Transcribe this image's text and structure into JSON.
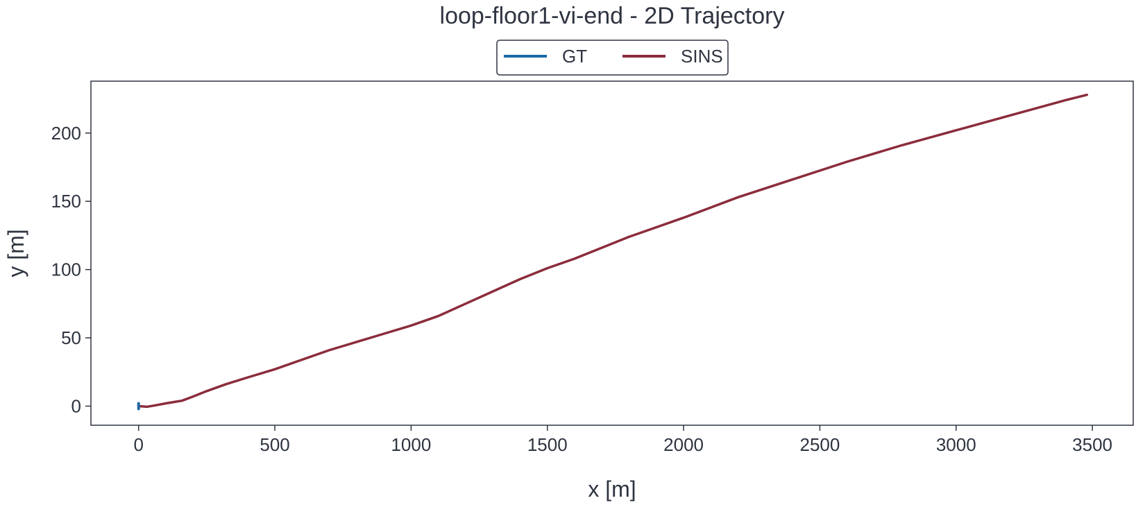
{
  "chart_data": {
    "type": "line",
    "title": "loop-floor1-vi-end - 2D Trajectory",
    "xlabel": "x [m]",
    "ylabel": "y [m]",
    "xlim": [
      -175,
      3650
    ],
    "ylim": [
      -14,
      238
    ],
    "xticks": [
      0,
      500,
      1000,
      1500,
      2000,
      2500,
      3000,
      3500
    ],
    "yticks": [
      0,
      50,
      100,
      150,
      200
    ],
    "grid": false,
    "legend": {
      "placement": "top-center",
      "columns": 2
    },
    "series": [
      {
        "name": "GT",
        "color": "#1a6aa6",
        "x": [
          0,
          0,
          0,
          0,
          0
        ],
        "y": [
          -2,
          -1,
          0,
          1,
          2
        ]
      },
      {
        "name": "SINS",
        "color": "#8b2c3c",
        "x": [
          0,
          30,
          60,
          100,
          160,
          200,
          250,
          320,
          400,
          500,
          600,
          700,
          800,
          900,
          1000,
          1100,
          1200,
          1300,
          1400,
          1500,
          1600,
          1700,
          1800,
          1900,
          2000,
          2200,
          2400,
          2600,
          2800,
          3000,
          3200,
          3400,
          3480
        ],
        "y": [
          0,
          -0.5,
          0.5,
          2,
          4,
          7,
          11,
          16,
          21,
          27,
          34,
          41,
          47,
          53,
          59,
          66,
          75,
          84,
          93,
          101,
          108,
          116,
          124,
          131,
          138,
          153,
          166,
          179,
          191,
          202,
          213,
          224,
          228
        ]
      }
    ]
  }
}
